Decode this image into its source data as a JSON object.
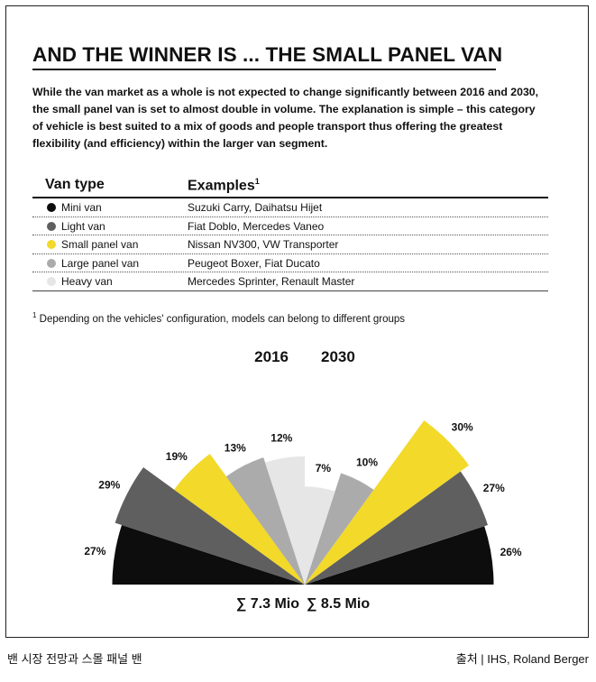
{
  "title": "AND THE WINNER IS ... THE SMALL PANEL VAN",
  "intro": "While the van market as a whole is not expected to change significantly between 2016 and 2030, the small panel van is set to almost double in volume. The explanation is simple – this category of vehicle is best suited to a mix of goods and people transport thus offering the greatest flexibility (and efficiency) within the larger van segment.",
  "table": {
    "col_type": "Van type",
    "col_examples": "Examples",
    "col_examples_sup": "1",
    "rows": [
      {
        "type": "Mini van",
        "examples": "Suzuki Carry, Daihatsu Hijet",
        "color": "#0d0d0d"
      },
      {
        "type": "Light van",
        "examples": "Fiat Doblo, Mercedes Vaneo",
        "color": "#5f5f5f"
      },
      {
        "type": "Small panel van",
        "examples": "Nissan NV300, VW Transporter",
        "color": "#f2d92a"
      },
      {
        "type": "Large panel van",
        "examples": "Peugeot Boxer, Fiat Ducato",
        "color": "#ababab"
      },
      {
        "type": "Heavy van",
        "examples": "Mercedes Sprinter, Renault Master",
        "color": "#e6e6e6"
      }
    ]
  },
  "footnote_sup": "1",
  "footnote": "Depending on the vehicles' configuration, models can belong to different groups",
  "chart_data": {
    "type": "pie",
    "variant": "polar-area fan (two half-fans back to back)",
    "categories": [
      "Mini van",
      "Light van",
      "Small panel van",
      "Large panel van",
      "Heavy van"
    ],
    "colors": [
      "#0d0d0d",
      "#5f5f5f",
      "#f2d92a",
      "#ababab",
      "#e6e6e6"
    ],
    "series": [
      {
        "name": "2016",
        "values": [
          27,
          29,
          19,
          13,
          12
        ],
        "labels": [
          "27%",
          "29%",
          "19%",
          "13%",
          "12%"
        ],
        "total_label": "∑ 7.3 Mio"
      },
      {
        "name": "2030",
        "values": [
          26,
          27,
          30,
          10,
          7
        ],
        "labels": [
          "26%",
          "27%",
          "30%",
          "10%",
          "7%"
        ],
        "total_label": "∑ 8.5 Mio"
      }
    ]
  },
  "caption_left": "밴 시장 전망과 스몰 패널 밴",
  "caption_right": "출처 | IHS, Roland Berger"
}
